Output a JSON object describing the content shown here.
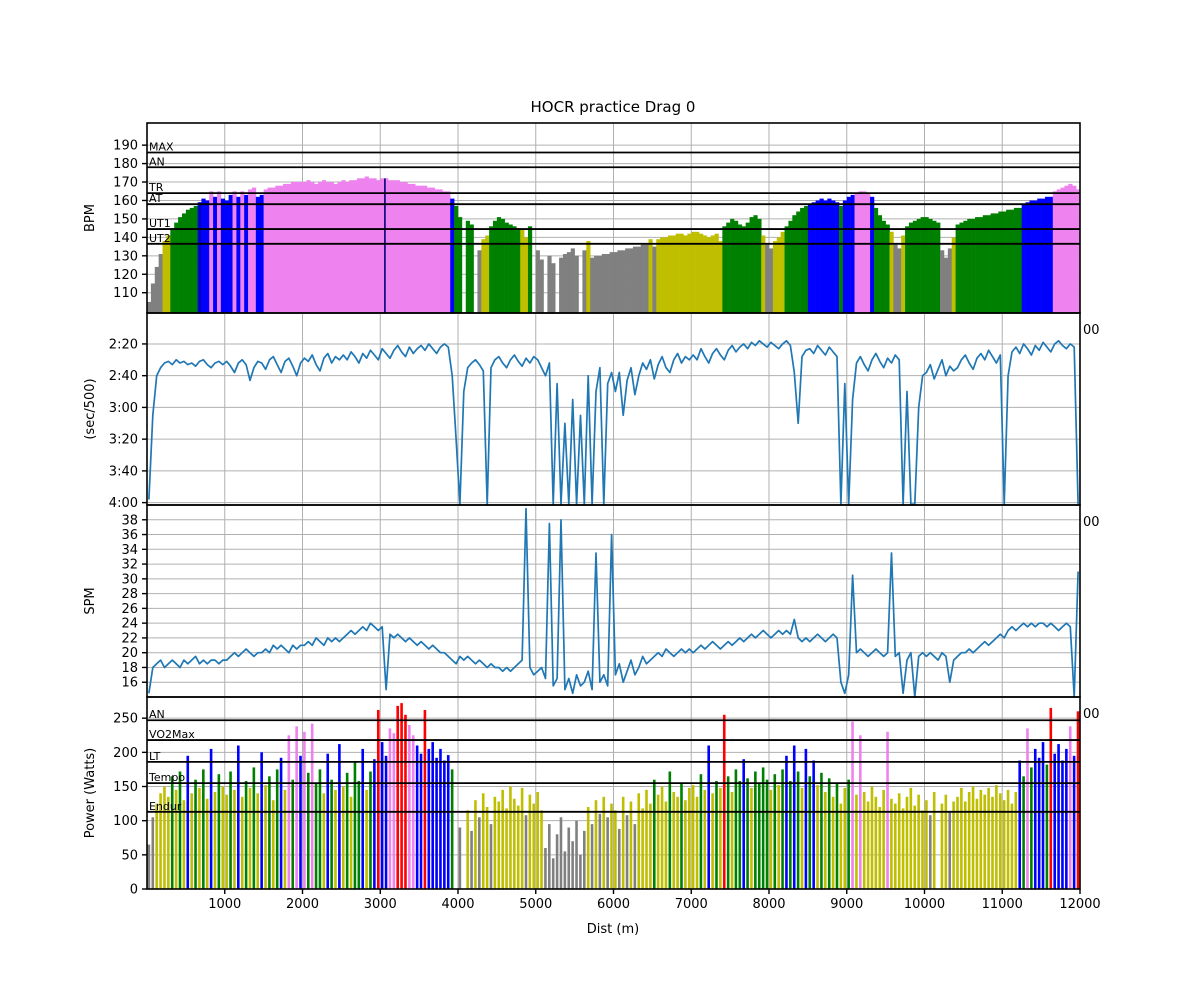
{
  "chart_data": {
    "type": "multi-panel rowing workout (bar + line)",
    "title": "HOCR practice Drag 0",
    "xlabel": "Dist (m)",
    "x_range": [
      0,
      12000
    ],
    "x_ticks": [
      1000,
      2000,
      3000,
      4000,
      5000,
      6000,
      7000,
      8000,
      9000,
      10000,
      11000,
      12000
    ],
    "bin_size_m": 50,
    "line_color": "#1f77b4",
    "grid_color": "#b0b0b0",
    "zone_palette": [
      "#808080",
      "#bfbf00",
      "#008000",
      "#0000ff",
      "#ee82ee",
      "#ff0000"
    ],
    "panels": [
      {
        "id": "heart-rate",
        "kind": "zone-bars",
        "ylabel": "BPM",
        "yrange": [
          202,
          99
        ],
        "yticks": [
          {
            "v": 110,
            "label": "110"
          },
          {
            "v": 120,
            "label": "120"
          },
          {
            "v": 130,
            "label": "130"
          },
          {
            "v": 140,
            "label": "140"
          },
          {
            "v": 150,
            "label": "150"
          },
          {
            "v": 160,
            "label": "160"
          },
          {
            "v": 170,
            "label": "170"
          },
          {
            "v": 180,
            "label": "180"
          },
          {
            "v": 190,
            "label": "190"
          }
        ],
        "zone_thresholds": [
          136.5,
          144.5,
          158,
          164,
          178
        ],
        "zone_lines": [
          {
            "label": "MAX",
            "value": 186
          },
          {
            "label": "AN",
            "value": 178
          },
          {
            "label": "TR",
            "value": 164
          },
          {
            "label": "AT",
            "value": 158
          },
          {
            "label": "UT1",
            "value": 144.5
          },
          {
            "label": "UT2",
            "value": 136.5
          }
        ],
        "marker_dists": [
          680,
          3060
        ],
        "marker_color": "#000080",
        "values": [
          105,
          115,
          124,
          131,
          138,
          141,
          145,
          148,
          151,
          153,
          155,
          156,
          157,
          159,
          161,
          160,
          165,
          162,
          165,
          161,
          160,
          163,
          165,
          162,
          165,
          163,
          166,
          167,
          162,
          163,
          166,
          167,
          167,
          168,
          168,
          169,
          169,
          170,
          170,
          170,
          170,
          171,
          170,
          169,
          170,
          171,
          170,
          170,
          169,
          170,
          171,
          170,
          171,
          171,
          172,
          172,
          173,
          172,
          172,
          171,
          172,
          172,
          171,
          171,
          171,
          170,
          170,
          169,
          169,
          168,
          168,
          168,
          167,
          167,
          166,
          166,
          165,
          165,
          161,
          157,
          151,
          null,
          149,
          147,
          null,
          133,
          139,
          141,
          146,
          149,
          151,
          150,
          148,
          147,
          146,
          145,
          144,
          140,
          146,
          null,
          133,
          128,
          null,
          130,
          126,
          null,
          129,
          131,
          132,
          134,
          130,
          null,
          133,
          138,
          129,
          130,
          130,
          131,
          131,
          132,
          132,
          133,
          133,
          134,
          134,
          135,
          135,
          136,
          136,
          139,
          135,
          139,
          140,
          140,
          141,
          141,
          142,
          142,
          141,
          142,
          143,
          143,
          142,
          141,
          140,
          141,
          142,
          138,
          146,
          148,
          150,
          149,
          147,
          146,
          148,
          151,
          152,
          150,
          141,
          136,
          134,
          138,
          140,
          143,
          146,
          149,
          152,
          154,
          156,
          157,
          158,
          159,
          160,
          161,
          160,
          161,
          160,
          159,
          157,
          160,
          162,
          163,
          164,
          165,
          165,
          164,
          162,
          156,
          152,
          149,
          147,
          143,
          136,
          134,
          141,
          146,
          148,
          149,
          150,
          151,
          151,
          150,
          149,
          148,
          133,
          129,
          134,
          140,
          147,
          148,
          149,
          150,
          150,
          151,
          151,
          152,
          152,
          153,
          153,
          154,
          154,
          155,
          155,
          156,
          156,
          158,
          159,
          160,
          160,
          161,
          161,
          162,
          162,
          165,
          166,
          167,
          168,
          169,
          168,
          166
        ]
      },
      {
        "id": "pace",
        "kind": "line",
        "ylabel": "(sec/500)",
        "yrange": [
          120.5,
          241.5
        ],
        "yticks": [
          {
            "v": 140,
            "label": "2:20"
          },
          {
            "v": 160,
            "label": "2:40"
          },
          {
            "v": 180,
            "label": "3:00"
          },
          {
            "v": 200,
            "label": "3:20"
          },
          {
            "v": 220,
            "label": "3:40"
          },
          {
            "v": 240,
            "label": "4:00"
          }
        ],
        "corner_label": "00",
        "values": [
          238,
          185,
          160,
          155,
          152,
          151,
          153,
          150,
          152,
          151,
          153,
          152,
          154,
          151,
          150,
          153,
          155,
          152,
          151,
          153,
          151,
          154,
          158,
          152,
          150,
          153,
          163,
          155,
          151,
          152,
          156,
          150,
          148,
          153,
          158,
          151,
          149,
          154,
          160,
          152,
          149,
          151,
          147,
          153,
          157,
          149,
          146,
          152,
          148,
          150,
          147,
          150,
          145,
          148,
          152,
          146,
          149,
          144,
          147,
          150,
          143,
          146,
          149,
          144,
          141,
          145,
          148,
          142,
          146,
          143,
          141,
          144,
          140,
          143,
          146,
          142,
          140,
          142,
          160,
          200,
          241,
          170,
          155,
          152,
          150,
          153,
          157,
          241,
          155,
          150,
          148,
          152,
          155,
          150,
          147,
          151,
          154,
          149,
          152,
          148,
          150,
          155,
          160,
          152,
          241,
          165,
          241,
          190,
          241,
          175,
          241,
          185,
          241,
          160,
          241,
          170,
          155,
          241,
          165,
          158,
          170,
          158,
          185,
          163,
          155,
          172,
          160,
          152,
          156,
          150,
          162,
          153,
          148,
          155,
          158,
          150,
          146,
          152,
          148,
          150,
          147,
          150,
          143,
          148,
          152,
          146,
          143,
          147,
          150,
          144,
          141,
          145,
          142,
          140,
          143,
          139,
          141,
          138,
          140,
          142,
          139,
          141,
          143,
          140,
          138,
          141,
          158,
          190,
          148,
          144,
          143,
          146,
          141,
          144,
          147,
          142,
          145,
          148,
          241,
          165,
          241,
          175,
          152,
          148,
          153,
          157,
          150,
          146,
          151,
          155,
          149,
          152,
          147,
          150,
          241,
          170,
          241,
          241,
          180,
          160,
          158,
          153,
          162,
          156,
          150,
          160,
          154,
          157,
          155,
          150,
          147,
          152,
          156,
          149,
          146,
          150,
          144,
          148,
          152,
          147,
          241,
          160,
          145,
          142,
          146,
          140,
          143,
          147,
          141,
          144,
          139,
          142,
          145,
          140,
          138,
          141,
          143,
          140,
          142,
          241
        ]
      },
      {
        "id": "stroke-rate",
        "kind": "line",
        "ylabel": "SPM",
        "yrange": [
          40,
          14
        ],
        "yticks": [
          {
            "v": 16,
            "label": "16"
          },
          {
            "v": 18,
            "label": "18"
          },
          {
            "v": 20,
            "label": "20"
          },
          {
            "v": 22,
            "label": "22"
          },
          {
            "v": 24,
            "label": "24"
          },
          {
            "v": 26,
            "label": "26"
          },
          {
            "v": 28,
            "label": "28"
          },
          {
            "v": 30,
            "label": "30"
          },
          {
            "v": 32,
            "label": "32"
          },
          {
            "v": 34,
            "label": "34"
          },
          {
            "v": 36,
            "label": "36"
          },
          {
            "v": 38,
            "label": "38"
          }
        ],
        "corner_label": "00",
        "values": [
          14.5,
          18,
          18.5,
          19,
          18,
          18.5,
          19,
          18.5,
          18,
          19,
          18.5,
          19,
          19.5,
          18.5,
          19,
          18.5,
          19,
          19,
          18.5,
          19,
          19,
          19.5,
          20,
          19.5,
          20,
          20.5,
          20,
          19.5,
          20,
          20,
          20.5,
          20,
          21,
          20.5,
          21,
          20.5,
          20,
          21,
          20.5,
          21,
          21,
          21.5,
          21,
          22,
          21.5,
          21,
          22,
          21.5,
          22,
          21.5,
          22,
          22.5,
          23,
          22.5,
          23,
          23.5,
          23,
          24,
          23.5,
          23,
          23.5,
          15,
          22.5,
          22,
          22.5,
          22,
          21.5,
          22,
          21.5,
          21,
          21.5,
          21,
          20.5,
          21,
          20.5,
          20,
          20,
          19.5,
          19,
          18.5,
          19.5,
          19,
          19.5,
          19,
          18.5,
          19,
          18.5,
          18,
          18.5,
          18,
          18,
          17.5,
          18,
          17.5,
          18,
          18.5,
          19,
          39.5,
          18,
          17,
          17.5,
          18,
          16.5,
          37.5,
          15.5,
          16.5,
          38,
          15,
          16.5,
          14.5,
          17,
          15.5,
          16,
          17.5,
          15,
          33.5,
          16,
          17,
          15.5,
          36,
          17,
          18.5,
          16,
          17.5,
          19,
          17,
          18,
          19.5,
          18.5,
          19,
          19.5,
          20,
          19.5,
          20.5,
          20,
          19.5,
          20,
          20.5,
          20,
          20.5,
          20,
          20.5,
          21,
          20.5,
          21,
          21.5,
          21,
          20.5,
          21,
          21.5,
          21,
          21.5,
          22,
          21.5,
          22,
          22.5,
          22,
          22.5,
          23,
          22.5,
          22,
          22.5,
          23,
          22.5,
          23,
          22.5,
          24.5,
          22,
          21.5,
          22,
          21.5,
          22,
          22.5,
          22,
          21.5,
          22,
          22.5,
          22,
          16,
          14.5,
          17,
          30.5,
          20,
          20.5,
          20,
          19.5,
          20,
          20.5,
          20,
          19.5,
          20,
          33.5,
          19.5,
          20,
          14.5,
          19,
          20,
          14,
          19.5,
          20,
          19.5,
          20,
          19.5,
          19,
          20,
          19.5,
          16,
          19,
          19.5,
          20,
          20,
          20.5,
          20,
          20.5,
          21,
          21.5,
          21,
          21.5,
          22,
          22.5,
          22,
          23,
          23.5,
          23,
          23.5,
          24,
          23.5,
          24,
          23.5,
          24,
          24,
          23.5,
          24,
          23.5,
          23,
          23.5,
          24,
          23.5,
          14,
          31
        ]
      },
      {
        "id": "power",
        "kind": "zone-bars-thin",
        "ylabel": "Power (Watts)",
        "yrange": [
          281,
          0
        ],
        "yticks": [
          {
            "v": 0,
            "label": "0"
          },
          {
            "v": 50,
            "label": "50"
          },
          {
            "v": 100,
            "label": "100"
          },
          {
            "v": 150,
            "label": "150"
          },
          {
            "v": 200,
            "label": "200"
          },
          {
            "v": 250,
            "label": "250"
          }
        ],
        "zone_thresholds": [
          113,
          155,
          186,
          218,
          247
        ],
        "zone_lines": [
          {
            "label": "AN",
            "value": 247
          },
          {
            "label": "VO2Max",
            "value": 218
          },
          {
            "label": "LT",
            "value": 186
          },
          {
            "label": "Tempo",
            "value": 155
          },
          {
            "label": "Endur",
            "value": 113
          }
        ],
        "corner_label": "00",
        "values": [
          65,
          105,
          125,
          140,
          150,
          135,
          165,
          145,
          172,
          130,
          195,
          140,
          160,
          148,
          175,
          132,
          205,
          142,
          168,
          150,
          138,
          172,
          145,
          210,
          135,
          158,
          148,
          178,
          140,
          200,
          152,
          165,
          130,
          175,
          192,
          145,
          225,
          160,
          238,
          195,
          230,
          170,
          242,
          155,
          175,
          140,
          198,
          160,
          145,
          212,
          150,
          170,
          135,
          185,
          158,
          205,
          145,
          172,
          190,
          262,
          215,
          195,
          235,
          228,
          268,
          272,
          255,
          240,
          225,
          210,
          198,
          262,
          205,
          215,
          192,
          205,
          188,
          196,
          175,
          null,
          90,
          null,
          115,
          85,
          130,
          105,
          140,
          120,
          95,
          135,
          128,
          145,
          118,
          150,
          132,
          122,
          148,
          108,
          138,
          125,
          142,
          115,
          60,
          95,
          45,
          80,
          105,
          55,
          90,
          70,
          100,
          50,
          85,
          120,
          95,
          130,
          110,
          135,
          105,
          125,
          115,
          88,
          135,
          108,
          128,
          95,
          140,
          118,
          145,
          125,
          160,
          138,
          150,
          128,
          172,
          142,
          135,
          155,
          130,
          148,
          152,
          135,
          168,
          145,
          210,
          140,
          158,
          148,
          255,
          165,
          142,
          175,
          158,
          190,
          162,
          148,
          172,
          155,
          178,
          160,
          145,
          168,
          152,
          175,
          195,
          158,
          210,
          172,
          148,
          205,
          165,
          188,
          152,
          170,
          142,
          162,
          135,
          155,
          125,
          148,
          160,
          245,
          138,
          225,
          142,
          128,
          150,
          135,
          120,
          145,
          230,
          132,
          125,
          140,
          118,
          135,
          148,
          122,
          138,
          115,
          130,
          108,
          142,
          null,
          125,
          138,
          112,
          128,
          135,
          148,
          128,
          142,
          150,
          132,
          145,
          138,
          148,
          135,
          152,
          140,
          130,
          145,
          125,
          142,
          188,
          165,
          235,
          178,
          205,
          192,
          215,
          182,
          265,
          198,
          212,
          188,
          205,
          238,
          195,
          260
        ]
      }
    ]
  }
}
